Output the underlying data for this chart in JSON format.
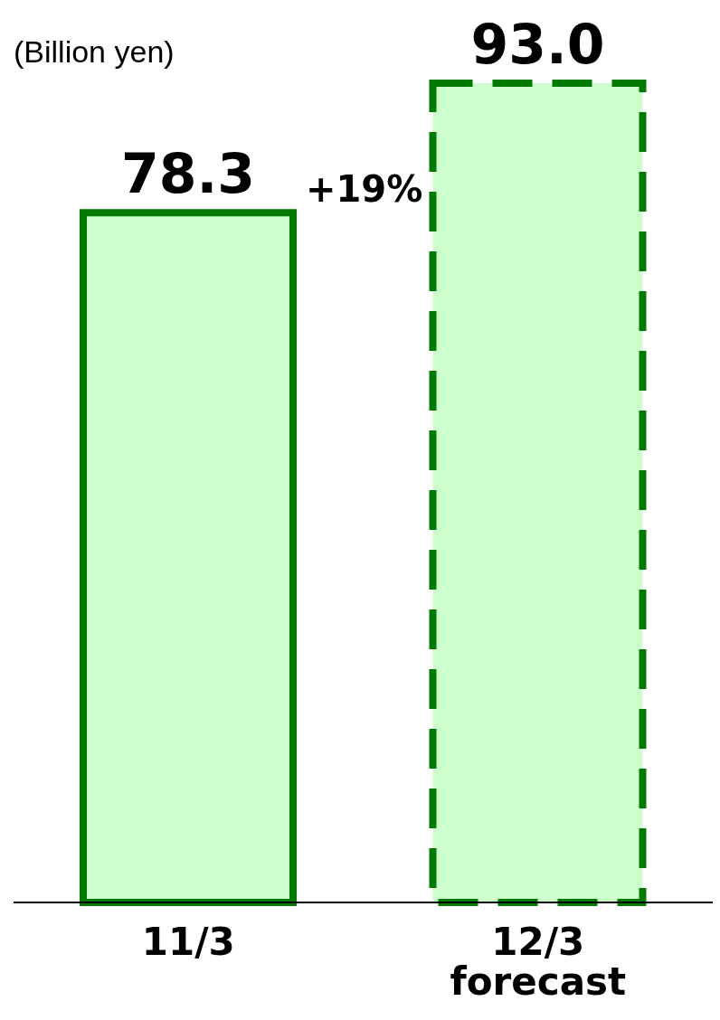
{
  "chart_data": {
    "type": "bar",
    "ylabel": "(Billion yen)",
    "categories": [
      "11/3",
      "12/3\nforecast"
    ],
    "series": [
      {
        "color": "#ccffcc",
        "line_style": "solid",
        "values": [
          78.3,
          null
        ],
        "value_labels": [
          "78.3",
          null
        ]
      },
      {
        "color": "#ccffcc",
        "line_style": "dashed",
        "values": [
          null,
          93.0
        ],
        "value_labels": [
          null,
          "93.0"
        ]
      }
    ],
    "annotations": [
      "+19%"
    ]
  }
}
